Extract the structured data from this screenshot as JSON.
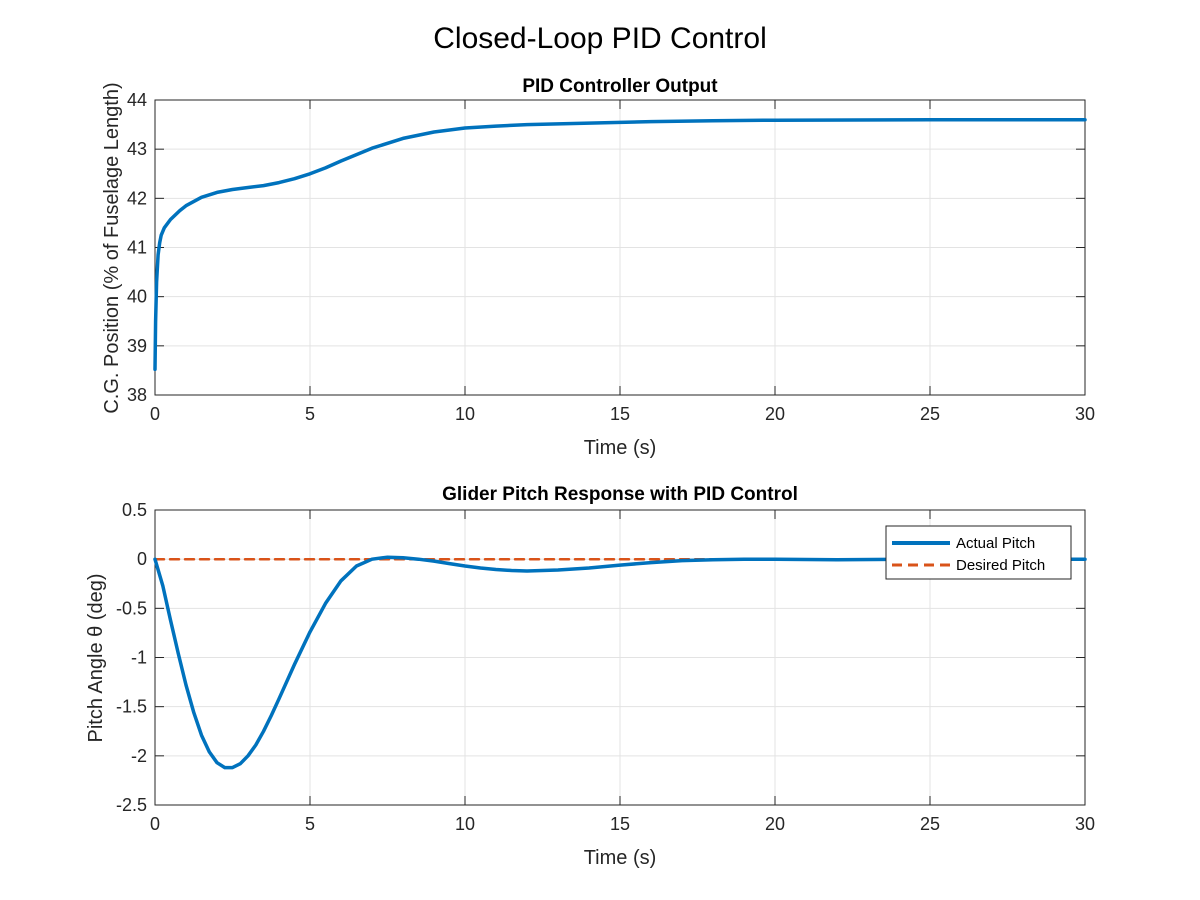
{
  "figure_title": "Closed-Loop PID Control",
  "colors": {
    "actual": "#0072BD",
    "desired": "#D95319",
    "grid": "#e3e3e3",
    "axes": "#262626"
  },
  "chart_data": [
    {
      "type": "line",
      "title": "PID Controller Output",
      "xlabel": "Time (s)",
      "ylabel": "C.G. Position (% of Fuselage Length)",
      "xlim": [
        0,
        30
      ],
      "ylim": [
        38,
        44
      ],
      "grid": true,
      "xticks": [
        "0",
        "5",
        "10",
        "15",
        "20",
        "25",
        "30"
      ],
      "yticks": [
        "38",
        "39",
        "40",
        "41",
        "42",
        "43",
        "44"
      ],
      "series": [
        {
          "x": [
            0,
            0.02,
            0.05,
            0.1,
            0.15,
            0.2,
            0.3,
            0.5,
            0.8,
            1,
            1.5,
            2,
            2.5,
            3,
            3.5,
            4,
            4.5,
            5,
            5.5,
            6,
            7,
            8,
            9,
            10,
            11,
            12,
            14,
            16,
            18,
            20,
            25,
            30
          ],
          "y": [
            38.52,
            39.5,
            40.3,
            40.85,
            41.1,
            41.25,
            41.4,
            41.57,
            41.75,
            41.85,
            42.02,
            42.12,
            42.18,
            42.22,
            42.26,
            42.32,
            42.4,
            42.5,
            42.62,
            42.76,
            43.02,
            43.22,
            43.35,
            43.43,
            43.47,
            43.5,
            43.53,
            43.56,
            43.58,
            43.59,
            43.6,
            43.6
          ]
        }
      ]
    },
    {
      "type": "line",
      "title": "Glider Pitch Response with PID Control",
      "xlabel": "Time (s)",
      "ylabel": "Pitch Angle θ (deg)",
      "xlim": [
        0,
        30
      ],
      "ylim": [
        -2.5,
        0.5
      ],
      "grid": true,
      "legend_position": "top-right",
      "xticks": [
        "0",
        "5",
        "10",
        "15",
        "20",
        "25",
        "30"
      ],
      "yticks": [
        "-2.5",
        "-2",
        "-1.5",
        "-1",
        "-0.5",
        "0",
        "0.5"
      ],
      "series": [
        {
          "name": "Actual Pitch",
          "x": [
            0,
            0.25,
            0.5,
            0.75,
            1,
            1.25,
            1.5,
            1.75,
            2,
            2.25,
            2.5,
            2.75,
            3,
            3.25,
            3.5,
            3.75,
            4,
            4.5,
            5,
            5.5,
            6,
            6.5,
            7,
            7.5,
            8,
            8.5,
            9,
            9.5,
            10,
            10.5,
            11,
            11.5,
            12,
            12.5,
            13,
            13.5,
            14,
            15,
            16,
            17,
            18,
            19,
            20,
            22,
            25,
            30
          ],
          "y": [
            0,
            -0.27,
            -0.62,
            -0.96,
            -1.28,
            -1.56,
            -1.79,
            -1.96,
            -2.07,
            -2.12,
            -2.12,
            -2.08,
            -2.0,
            -1.89,
            -1.75,
            -1.59,
            -1.42,
            -1.07,
            -0.74,
            -0.45,
            -0.22,
            -0.07,
            0.0,
            0.02,
            0.015,
            0.0,
            -0.02,
            -0.045,
            -0.07,
            -0.09,
            -0.105,
            -0.115,
            -0.12,
            -0.115,
            -0.11,
            -0.1,
            -0.09,
            -0.06,
            -0.035,
            -0.015,
            -0.005,
            0.0,
            0.0,
            -0.005,
            0.0,
            0.0
          ]
        },
        {
          "name": "Desired Pitch",
          "x": [
            0,
            30
          ],
          "y": [
            0,
            0
          ]
        }
      ]
    }
  ]
}
